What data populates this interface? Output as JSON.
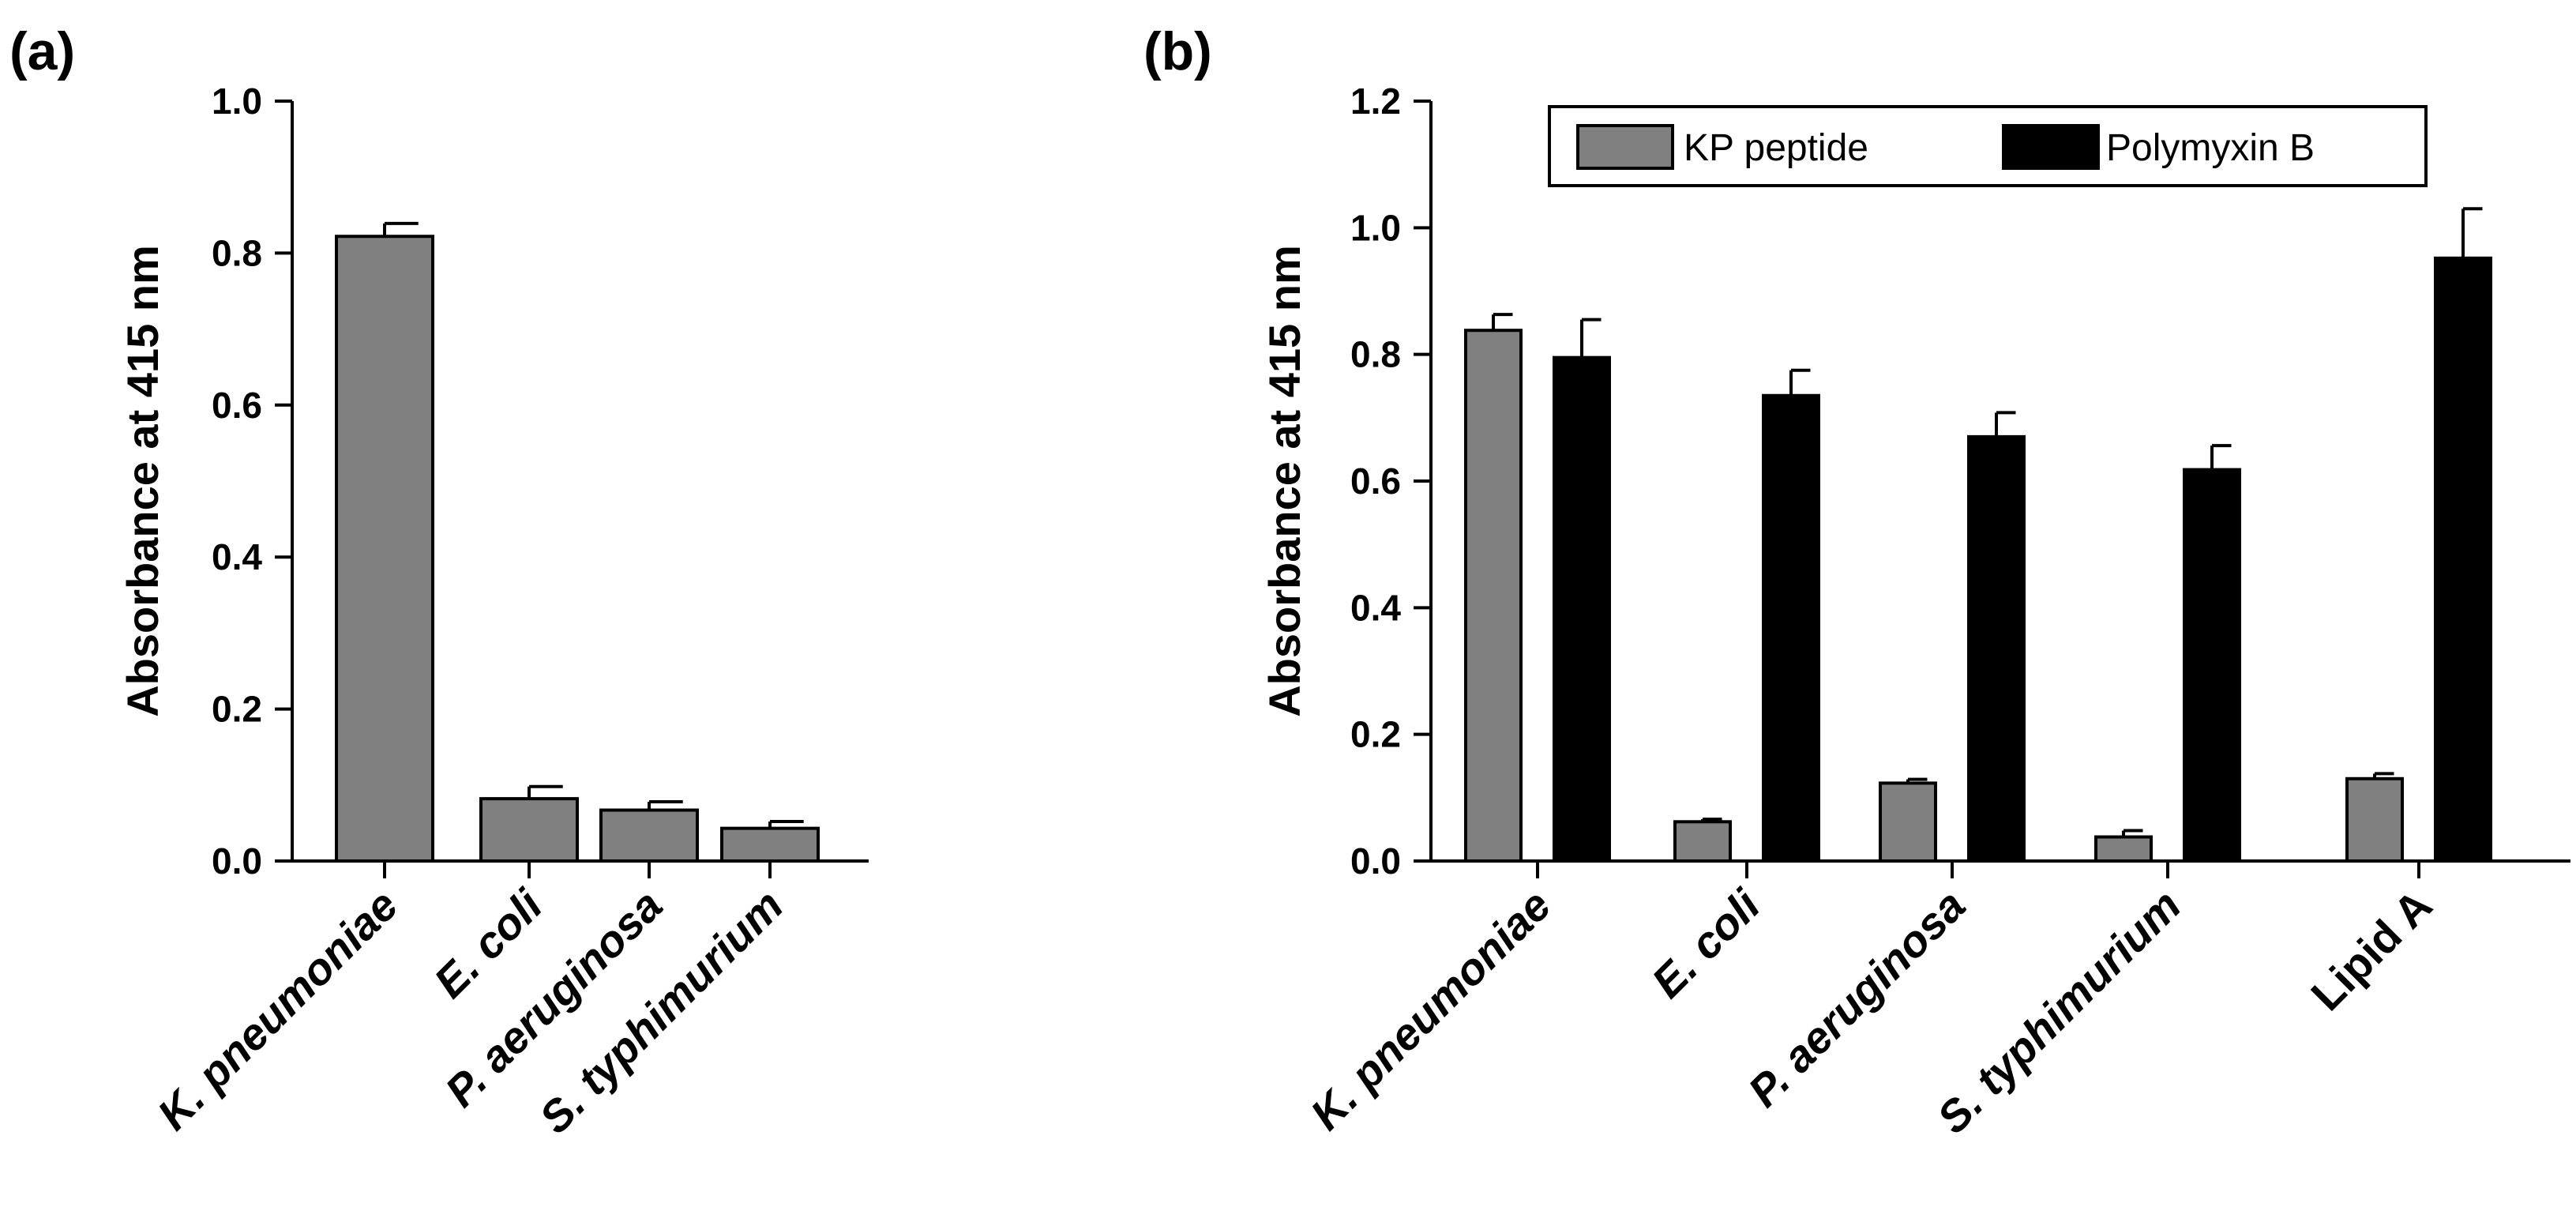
{
  "chart_data": [
    {
      "panel": "(a)",
      "type": "bar",
      "ylabel": "Absorbance at 415 nm",
      "ylim": [
        0,
        1.0
      ],
      "yticks": [
        "0.0",
        "0.2",
        "0.4",
        "0.6",
        "0.8",
        "1.0"
      ],
      "categories": [
        "K. pneumoniae",
        "E. coli",
        "P. aeruginosa",
        "S. typhimurium"
      ],
      "italic": [
        true,
        true,
        true,
        true
      ],
      "series": [
        {
          "name": "KP peptide",
          "color": "#808080",
          "values": [
            0.822,
            0.082,
            0.067,
            0.043
          ],
          "errors": [
            0.017,
            0.016,
            0.011,
            0.009
          ]
        }
      ]
    },
    {
      "panel": "(b)",
      "type": "bar",
      "ylabel": "Absorbance at 415 nm",
      "ylim": [
        0,
        1.2
      ],
      "yticks": [
        "0.0",
        "0.2",
        "0.4",
        "0.6",
        "0.8",
        "1.0",
        "1.2"
      ],
      "categories": [
        "K. pneumoniae",
        "E. coli",
        "P. aeruginosa",
        "S. typhimurium",
        "Lipid A"
      ],
      "italic": [
        true,
        true,
        true,
        true,
        false
      ],
      "legend": [
        "KP peptide",
        "Polymyxin B"
      ],
      "series": [
        {
          "name": "KP peptide",
          "color": "#808080",
          "values": [
            0.838,
            0.062,
            0.123,
            0.038,
            0.13
          ],
          "errors": [
            0.025,
            0.004,
            0.006,
            0.01,
            0.008
          ]
        },
        {
          "name": "Polymyxin B",
          "color": "#000000",
          "values": [
            0.795,
            0.735,
            0.67,
            0.618,
            0.952
          ],
          "errors": [
            0.06,
            0.04,
            0.038,
            0.038,
            0.078
          ]
        }
      ]
    }
  ]
}
